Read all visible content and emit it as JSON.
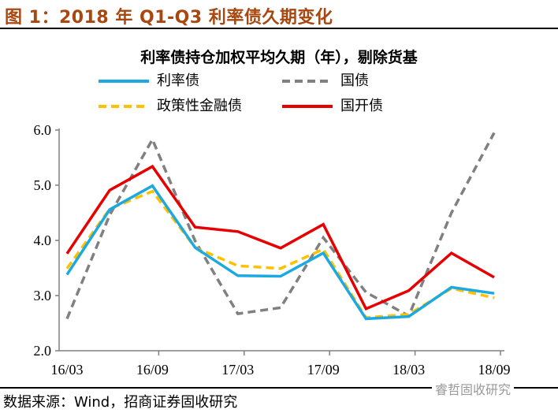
{
  "figure_title": "图 1：2018 年 Q1-Q3 利率债久期变化",
  "source": "数据来源：Wind，招商证券固收研究",
  "watermark": "睿哲固收研究",
  "chart_data": {
    "type": "line",
    "title": "利率债持仓加权平均久期（年），剔除货基",
    "x": [
      "16/03",
      "16/06",
      "16/09",
      "16/12",
      "17/03",
      "17/06",
      "17/09",
      "17/12",
      "18/03",
      "18/06",
      "18/09"
    ],
    "x_tick_labels": [
      "16/03",
      "16/09",
      "17/03",
      "17/09",
      "18/03",
      "18/09"
    ],
    "y_tick_labels": [
      "2.0",
      "3.0",
      "4.0",
      "5.0",
      "6.0"
    ],
    "ylim": [
      2.0,
      6.0
    ],
    "grid": false,
    "legend": "top",
    "series": [
      {
        "name": "利率债",
        "color": "#1CA9E0",
        "dash": false,
        "values": [
          3.38,
          4.56,
          4.99,
          3.87,
          3.36,
          3.35,
          3.77,
          2.58,
          2.62,
          3.15,
          3.04
        ]
      },
      {
        "name": "国债",
        "color": "#808080",
        "dash": true,
        "values": [
          2.58,
          4.46,
          5.83,
          3.99,
          2.67,
          2.78,
          4.05,
          3.06,
          2.63,
          4.5,
          5.95
        ]
      },
      {
        "name": "政策性金融债",
        "color": "#FFC000",
        "dash": true,
        "values": [
          3.49,
          4.57,
          4.89,
          3.87,
          3.54,
          3.49,
          3.84,
          2.6,
          2.66,
          3.13,
          2.96
        ]
      },
      {
        "name": "国开债",
        "color": "#E60000",
        "dash": false,
        "values": [
          3.76,
          4.91,
          5.34,
          4.24,
          4.16,
          3.86,
          4.29,
          2.76,
          3.09,
          3.77,
          3.33
        ]
      }
    ]
  }
}
